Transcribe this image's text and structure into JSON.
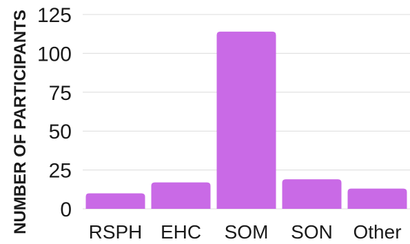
{
  "chart_data": {
    "type": "bar",
    "title": "",
    "xlabel": "",
    "ylabel": "NUMBER OF PARTICIPANTS",
    "categories": [
      "RSPH",
      "EHC",
      "SOM",
      "SON",
      "Other"
    ],
    "values": [
      10,
      17,
      114,
      19,
      13
    ],
    "ylim": [
      0,
      125
    ],
    "yticks": [
      0,
      25,
      50,
      75,
      100,
      125
    ],
    "grid": true,
    "bar_color": "#c96ae6",
    "grid_color": "#dcdcdc",
    "text_color": "#1a1a1a"
  }
}
